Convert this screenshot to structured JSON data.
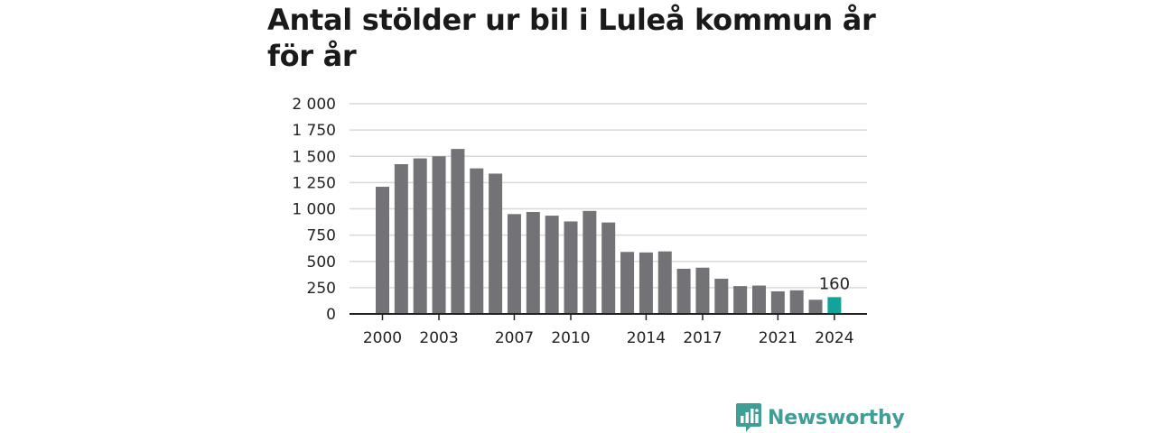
{
  "title": "Antal stölder ur bil i Luleå kommun år för år",
  "brand": {
    "name": "Newsworthy",
    "icon": "newsworthy-logo-icon",
    "color": "#3f9e95"
  },
  "chart_data": {
    "type": "bar",
    "title": "Antal stölder ur bil i Luleå kommun år för år",
    "xlabel": "",
    "ylabel": "",
    "categories": [
      "2000",
      "2001",
      "2002",
      "2003",
      "2004",
      "2005",
      "2006",
      "2007",
      "2008",
      "2009",
      "2010",
      "2011",
      "2012",
      "2013",
      "2014",
      "2015",
      "2016",
      "2017",
      "2018",
      "2019",
      "2020",
      "2021",
      "2022",
      "2023",
      "2024"
    ],
    "values": [
      1210,
      1425,
      1480,
      1500,
      1570,
      1385,
      1335,
      950,
      970,
      935,
      880,
      980,
      870,
      590,
      585,
      595,
      430,
      440,
      335,
      265,
      270,
      215,
      225,
      135,
      160
    ],
    "x_tick_labels": [
      "2000",
      "2003",
      "2007",
      "2010",
      "2014",
      "2017",
      "2021",
      "2024"
    ],
    "y_ticks": [
      0,
      250,
      500,
      750,
      1000,
      1250,
      1500,
      1750,
      2000
    ],
    "y_tick_labels": [
      "0",
      "250",
      "500",
      "750",
      "1 000",
      "1 250",
      "1 500",
      "1 750",
      "2 000"
    ],
    "ylim": [
      0,
      2000
    ],
    "grid": true,
    "highlight": {
      "category": "2024",
      "label": "160",
      "color": "#13a39a"
    },
    "bar_color": "#737277"
  }
}
